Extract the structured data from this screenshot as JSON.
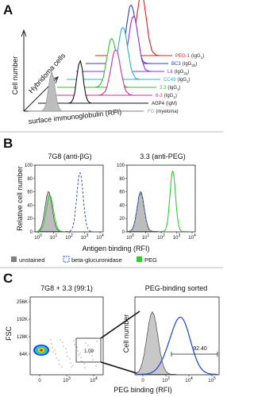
{
  "panels": [
    {
      "label": "A",
      "y_axis_label": "Cell number",
      "depth_axis_label": "Hybridoma cells",
      "x_axis_label": "surface immunoglobulin (RFI)",
      "clones": [
        {
          "name": "PEG-1",
          "isotype": "(IgG",
          "subscript": "1",
          "close": ")",
          "color": "#e3191f"
        },
        {
          "name": "BC3",
          "isotype": "(IgG",
          "subscript": "2b",
          "close": ")",
          "color": "#2a3fb8"
        },
        {
          "name": "L6",
          "isotype": "(IgG",
          "subscript": "2a",
          "close": ")",
          "color": "#8a2be2"
        },
        {
          "name": "CC49",
          "isotype": "(IgG",
          "subscript": "1",
          "close": ")",
          "color": "#22b8c8"
        },
        {
          "name": "3.3",
          "isotype": "(IgG",
          "subscript": "1",
          "close": ")",
          "color": "#2fbf2f"
        },
        {
          "name": "6-3",
          "isotype": "(IgG",
          "subscript": "1",
          "close": ")",
          "color": "#d0309a"
        },
        {
          "name": "AGP4",
          "isotype": "(IgM)",
          "color": "#111111"
        },
        {
          "name": "FO",
          "isotype": "(myeloma)",
          "color": "#9a9a9a"
        }
      ]
    },
    {
      "label": "B",
      "plots": [
        {
          "title": "7G8 (anti-βG)"
        },
        {
          "title": "3.3 (anti-PEG)"
        }
      ],
      "y_axis_label": "Relative cell number",
      "y_ticks": [
        0,
        20,
        40,
        60,
        80,
        100
      ],
      "x_ticks": [
        {
          "b": "10",
          "e": "0"
        },
        {
          "b": "10",
          "e": "1"
        },
        {
          "b": "10",
          "e": "2"
        },
        {
          "b": "10",
          "e": "3"
        },
        {
          "b": "10",
          "e": "4"
        }
      ],
      "x_axis_label": "Antigen binding (RFI)",
      "legend": [
        {
          "label": "unstained",
          "color": "#808080"
        },
        {
          "label": "beta-glucuronidase",
          "color": "#3355bb"
        },
        {
          "label": "PEG",
          "color": "#33cc33"
        }
      ]
    },
    {
      "label": "C",
      "scatter": {
        "title": "7G8 + 3.3 (99:1)",
        "y_axis_label": "FSC",
        "y_ticks": [
          "256K",
          "192K",
          "128K",
          "64K"
        ],
        "x_ticks": [
          "0",
          {
            "b": "10",
            "e": "3"
          },
          {
            "b": "10",
            "e": "4"
          }
        ],
        "gate_value": "1.09"
      },
      "histogram": {
        "title": "PEG-binding sorted",
        "y_axis_label": "Cell number",
        "gate_value": "92.40",
        "x_ticks": [
          "0",
          {
            "b": "10",
            "e": "3"
          },
          {
            "b": "10",
            "e": "4"
          },
          {
            "b": "10",
            "e": "5"
          }
        ]
      },
      "x_axis_label": "PEG binding (RFI)"
    }
  ]
}
